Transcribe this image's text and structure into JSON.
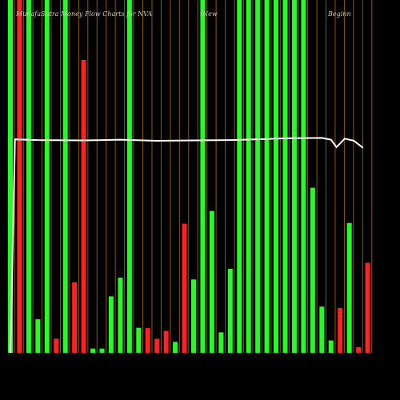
{
  "header": {
    "title": "MunafaSutra  Money Flow  Charts for NVA",
    "middle": "(New",
    "right": "Beginn"
  },
  "chart_data": {
    "type": "bar",
    "title": "MunafaSutra  Money Flow  Charts for NVA",
    "ylim": [
      0,
      100
    ],
    "colors": {
      "up": "#22ff22",
      "down": "#ff2222",
      "grid": "#8b5a00",
      "line": "#ffffff",
      "background": "#000000"
    },
    "bars": [
      {
        "label": "",
        "value": 100,
        "color": "green"
      },
      {
        "label": "",
        "value": 100,
        "color": "red"
      },
      {
        "label": "",
        "value": 100,
        "color": "green"
      },
      {
        "label": "",
        "value": 9.5,
        "color": "green"
      },
      {
        "label": "",
        "value": 100,
        "color": "green"
      },
      {
        "label": "",
        "value": 4,
        "color": "red"
      },
      {
        "label": "",
        "value": 100,
        "color": "green"
      },
      {
        "label": "",
        "value": 20,
        "color": "red"
      },
      {
        "label": "",
        "value": 83,
        "color": "red"
      },
      {
        "label": "",
        "value": 1.2,
        "color": "green"
      },
      {
        "label": "",
        "value": 1.2,
        "color": "green"
      },
      {
        "label": "",
        "value": 16,
        "color": "green"
      },
      {
        "label": "",
        "value": 21.3,
        "color": "green"
      },
      {
        "label": "",
        "value": 100,
        "color": "green"
      },
      {
        "label": "",
        "value": 7.1,
        "color": "green"
      },
      {
        "label": "",
        "value": 7,
        "color": "red"
      },
      {
        "label": "",
        "value": 4,
        "color": "red"
      },
      {
        "label": "",
        "value": 6.2,
        "color": "red"
      },
      {
        "label": "",
        "value": 3.1,
        "color": "green"
      },
      {
        "label": "",
        "value": 36.6,
        "color": "red"
      },
      {
        "label": "",
        "value": 20.8,
        "color": "green"
      },
      {
        "label": "",
        "value": 100,
        "color": "green"
      },
      {
        "label": "",
        "value": 40.2,
        "color": "green"
      },
      {
        "label": "",
        "value": 5.8,
        "color": "green"
      },
      {
        "label": "",
        "value": 23.8,
        "color": "green"
      },
      {
        "label": "",
        "value": 100,
        "color": "green"
      },
      {
        "label": "",
        "value": 100,
        "color": "green"
      },
      {
        "label": "",
        "value": 100,
        "color": "green"
      },
      {
        "label": "",
        "value": 100,
        "color": "green"
      },
      {
        "label": "",
        "value": 100,
        "color": "green"
      },
      {
        "label": "",
        "value": 100,
        "color": "green"
      },
      {
        "label": "",
        "value": 100,
        "color": "green"
      },
      {
        "label": "",
        "value": 100,
        "color": "green"
      },
      {
        "label": "",
        "value": 46.8,
        "color": "green"
      },
      {
        "label": "",
        "value": 13.1,
        "color": "green"
      },
      {
        "label": "",
        "value": 3.5,
        "color": "green"
      },
      {
        "label": "",
        "value": 12.7,
        "color": "red"
      },
      {
        "label": "",
        "value": 36.8,
        "color": "green"
      },
      {
        "label": "",
        "value": 1.6,
        "color": "red"
      },
      {
        "label": "",
        "value": 25.5,
        "color": "red"
      }
    ],
    "line": [
      {
        "x": 0,
        "y": 0
      },
      {
        "x": 0.5,
        "y": 60.5
      },
      {
        "x": 3,
        "y": 60.3
      },
      {
        "x": 8,
        "y": 60.2
      },
      {
        "x": 12,
        "y": 60.4
      },
      {
        "x": 16,
        "y": 60.1
      },
      {
        "x": 20,
        "y": 60.2
      },
      {
        "x": 24,
        "y": 60.3
      },
      {
        "x": 28,
        "y": 60.6
      },
      {
        "x": 30,
        "y": 60.8
      },
      {
        "x": 34,
        "y": 60.9
      },
      {
        "x": 35,
        "y": 60.4
      },
      {
        "x": 35.6,
        "y": 58.3
      },
      {
        "x": 36.5,
        "y": 60.7
      },
      {
        "x": 37.5,
        "y": 60.1
      },
      {
        "x": 38.5,
        "y": 58.1
      }
    ]
  }
}
